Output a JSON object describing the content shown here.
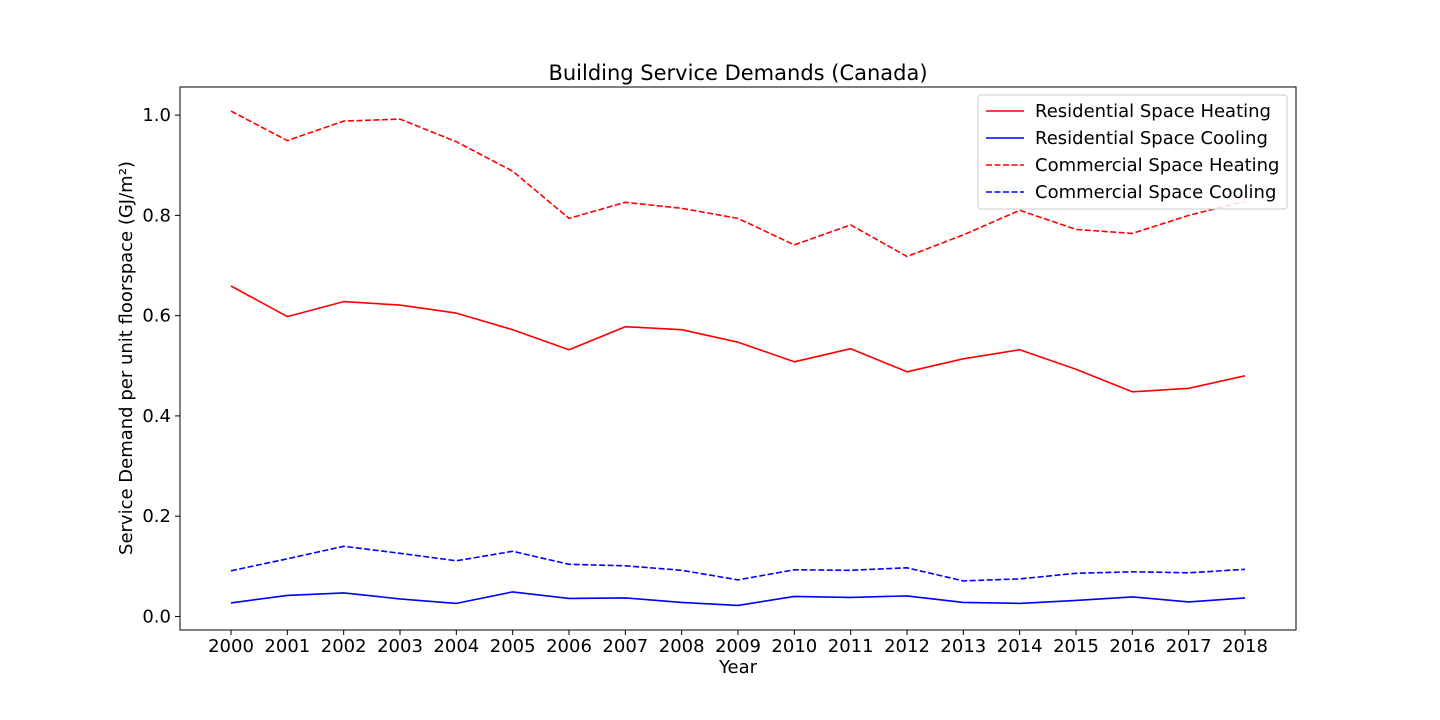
{
  "chart_data": {
    "type": "line",
    "title": "Building Service Demands (Canada)",
    "xlabel": "Year",
    "ylabel": "Service Demand per unit floorspace (GJ/m²)",
    "x": [
      2000,
      2001,
      2002,
      2003,
      2004,
      2005,
      2006,
      2007,
      2008,
      2009,
      2010,
      2011,
      2012,
      2013,
      2014,
      2015,
      2016,
      2017,
      2018
    ],
    "xticks": [
      "2000",
      "2001",
      "2002",
      "2003",
      "2004",
      "2005",
      "2006",
      "2007",
      "2008",
      "2009",
      "2010",
      "2011",
      "2012",
      "2013",
      "2014",
      "2015",
      "2016",
      "2017",
      "2018"
    ],
    "yticks": [
      "0.0",
      "0.2",
      "0.4",
      "0.6",
      "0.8",
      "1.0"
    ],
    "ylim": [
      -0.027,
      1.056
    ],
    "grid": false,
    "legend_position": "top-right",
    "series": [
      {
        "name": "Residential Space Heating",
        "color": "#ff0000",
        "dash": "solid",
        "values": [
          0.659,
          0.598,
          0.628,
          0.621,
          0.605,
          0.572,
          0.532,
          0.578,
          0.572,
          0.547,
          0.508,
          0.534,
          0.488,
          0.514,
          0.532,
          0.493,
          0.448,
          0.455,
          0.48
        ]
      },
      {
        "name": "Residential Space Cooling",
        "color": "#0000ff",
        "dash": "solid",
        "values": [
          0.027,
          0.042,
          0.047,
          0.035,
          0.026,
          0.049,
          0.036,
          0.037,
          0.028,
          0.022,
          0.04,
          0.038,
          0.041,
          0.028,
          0.026,
          0.032,
          0.039,
          0.029,
          0.037
        ]
      },
      {
        "name": "Commercial Space Heating",
        "color": "#ff0000",
        "dash": "dashed",
        "values": [
          1.008,
          0.949,
          0.988,
          0.992,
          0.947,
          0.888,
          0.794,
          0.826,
          0.814,
          0.794,
          0.741,
          0.781,
          0.718,
          0.761,
          0.81,
          0.772,
          0.764,
          0.8,
          0.828
        ]
      },
      {
        "name": "Commercial Space Cooling",
        "color": "#0000ff",
        "dash": "dashed",
        "values": [
          0.091,
          0.115,
          0.14,
          0.126,
          0.111,
          0.13,
          0.104,
          0.101,
          0.092,
          0.073,
          0.093,
          0.092,
          0.097,
          0.071,
          0.075,
          0.086,
          0.089,
          0.087,
          0.094
        ]
      }
    ]
  }
}
